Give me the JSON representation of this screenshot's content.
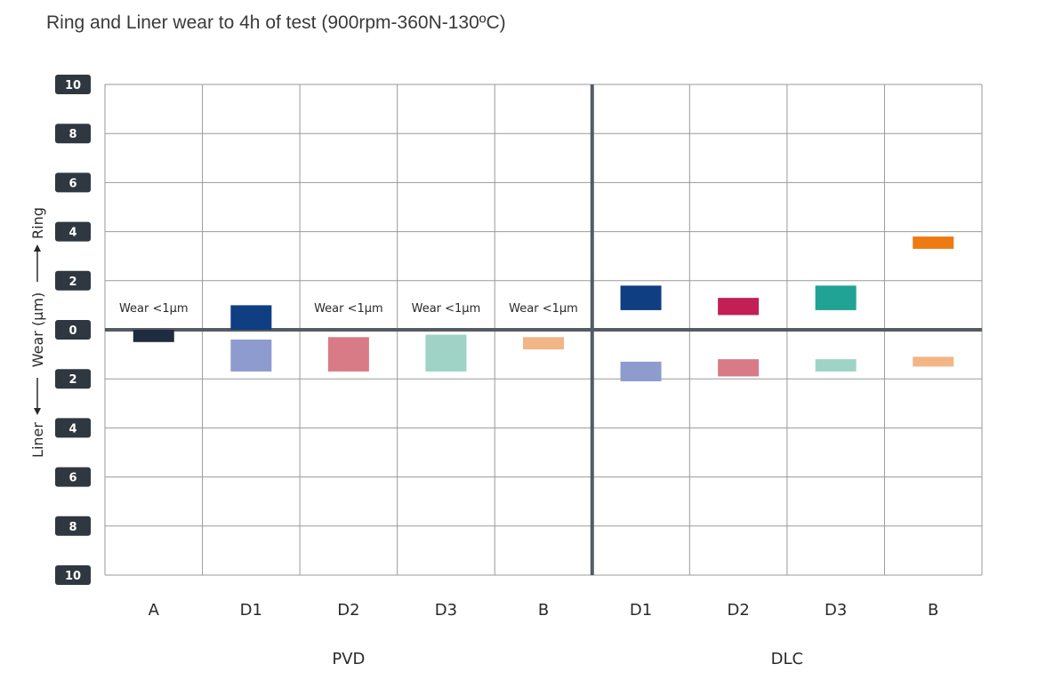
{
  "chart_data": {
    "type": "bar",
    "title": "Ring and Liner wear to 4h of test (900rpm-360N-130ºC)",
    "ylabel": {
      "lower": "Liner",
      "middle": "Wear (µm)",
      "upper": "Ring"
    },
    "yticks": [
      "10",
      "8",
      "6",
      "4",
      "2",
      "0",
      "2",
      "4",
      "6",
      "8",
      "10"
    ],
    "ylim": [
      -10,
      10
    ],
    "grid": true,
    "categories": [
      "A",
      "D1",
      "D2",
      "D3",
      "B",
      "D1",
      "D2",
      "D3",
      "B"
    ],
    "groups": [
      {
        "name": "PVD",
        "categories": [
          0,
          1,
          2,
          3,
          4
        ]
      },
      {
        "name": "DLC",
        "categories": [
          5,
          6,
          7,
          8
        ]
      }
    ],
    "series": [
      {
        "name": "Ring",
        "values": [
          {
            "low": 0,
            "high": 0,
            "note": "Wear <1µm"
          },
          {
            "low": 0,
            "high": 1.0,
            "note": ""
          },
          {
            "low": 0,
            "high": 0,
            "note": "Wear <1µm"
          },
          {
            "low": 0,
            "high": 0,
            "note": "Wear <1µm"
          },
          {
            "low": 0,
            "high": 0,
            "note": "Wear <1µm"
          },
          {
            "low": 0.8,
            "high": 1.8,
            "note": ""
          },
          {
            "low": 0.6,
            "high": 1.3,
            "note": ""
          },
          {
            "low": 0.8,
            "high": 1.8,
            "note": ""
          },
          {
            "low": 3.3,
            "high": 3.8,
            "note": ""
          }
        ]
      },
      {
        "name": "Liner",
        "values": [
          {
            "low": 0,
            "high": 0.5
          },
          {
            "low": 0.4,
            "high": 1.7
          },
          {
            "low": 0.3,
            "high": 1.7
          },
          {
            "low": 0.2,
            "high": 1.7
          },
          {
            "low": 0.3,
            "high": 0.8
          },
          {
            "low": 1.3,
            "high": 2.1
          },
          {
            "low": 1.2,
            "high": 1.9
          },
          {
            "low": 1.2,
            "high": 1.7
          },
          {
            "low": 1.1,
            "high": 1.5
          }
        ]
      }
    ],
    "colors": {
      "ring": [
        "#1f2b3e",
        "#0f3e82",
        "",
        "",
        "",
        "#0f3e82",
        "#c21f55",
        "#20a395",
        "#ee7a12"
      ],
      "liner": [
        "#1f2b3e",
        "#8e9bce",
        "#d87b87",
        "#9fd3c6",
        "#f2b586",
        "#8e9bce",
        "#d87b87",
        "#9fd3c6",
        "#f2b586"
      ]
    }
  }
}
